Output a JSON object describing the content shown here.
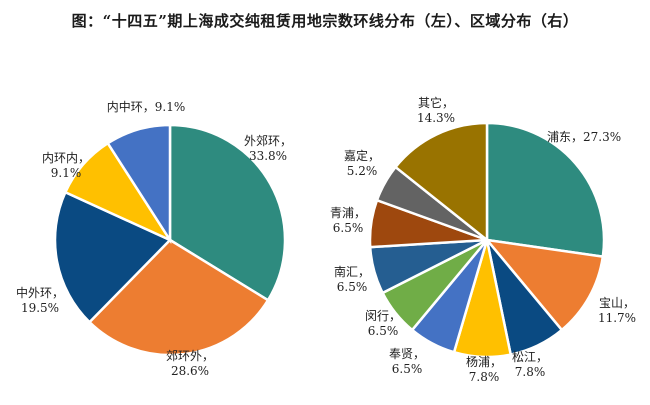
{
  "title": "图：“十四五”期上海成交纯租赁用地宗数环线分布（左）、区域分布（右）",
  "chart_data": [
    {
      "type": "pie",
      "slices": [
        {
          "label": "外郊环",
          "value": 33.8,
          "display": "33.8%",
          "color": "#2e8b7f"
        },
        {
          "label": "郊环外",
          "value": 28.6,
          "display": "28.6%",
          "color": "#ed7d31"
        },
        {
          "label": "中外环",
          "value": 19.5,
          "display": "19.5%",
          "color": "#0a4a82"
        },
        {
          "label": "内环内",
          "value": 9.1,
          "display": "9.1%",
          "color": "#ffc000"
        },
        {
          "label": "内中环",
          "value": 9.1,
          "display": "9.1%",
          "color": "#4472c4"
        }
      ]
    },
    {
      "type": "pie",
      "slices": [
        {
          "label": "浦东",
          "value": 27.3,
          "display": "27.3%",
          "color": "#2e8b7f"
        },
        {
          "label": "宝山",
          "value": 11.7,
          "display": "11.7%",
          "color": "#ed7d31"
        },
        {
          "label": "松江",
          "value": 7.8,
          "display": "7.8%",
          "color": "#0a4a82"
        },
        {
          "label": "杨浦",
          "value": 7.8,
          "display": "7.8%",
          "color": "#ffc000"
        },
        {
          "label": "奉贤",
          "value": 6.5,
          "display": "6.5%",
          "color": "#4472c4"
        },
        {
          "label": "闵行",
          "value": 6.5,
          "display": "6.5%",
          "color": "#70ad47"
        },
        {
          "label": "南汇",
          "value": 6.5,
          "display": "6.5%",
          "color": "#255e91"
        },
        {
          "label": "青浦",
          "value": 6.5,
          "display": "6.5%",
          "color": "#9e480e"
        },
        {
          "label": "嘉定",
          "value": 5.2,
          "display": "5.2%",
          "color": "#636363"
        },
        {
          "label": "其它",
          "value": 14.3,
          "display": "14.3%",
          "color": "#997300"
        }
      ]
    }
  ]
}
